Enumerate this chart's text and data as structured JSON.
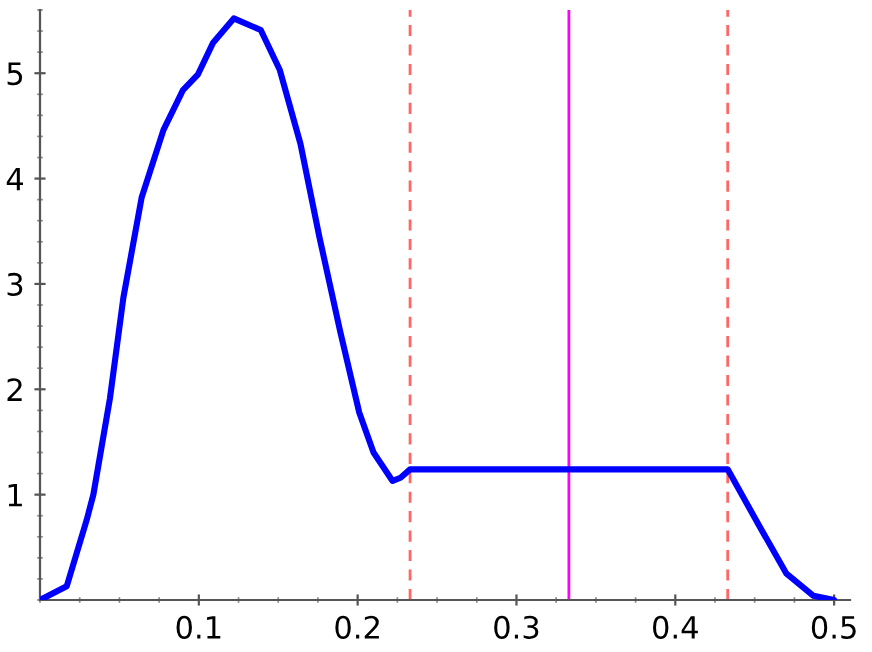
{
  "chart_data": {
    "type": "line",
    "series": [
      {
        "color": "#0000ff",
        "x": [
          0,
          0.0168,
          0.0294,
          0.0336,
          0.044,
          0.0525,
          0.064,
          0.0777,
          0.09,
          0.0995,
          0.109,
          0.122,
          0.139,
          0.151,
          0.164,
          0.176,
          0.189,
          0.201,
          0.21,
          0.222,
          0.227,
          0.233,
          0.433,
          0.453,
          0.47,
          0.487,
          0.5
        ],
        "values": [
          0,
          0.13,
          0.76,
          1.0,
          1.91,
          2.87,
          3.82,
          4.46,
          4.84,
          4.99,
          5.29,
          5.52,
          5.41,
          5.03,
          4.33,
          3.44,
          2.55,
          1.78,
          1.4,
          1.13,
          1.16,
          1.24,
          1.24,
          0.7,
          0.25,
          0.04,
          0
        ]
      }
    ],
    "xlim": [
      0,
      0.51
    ],
    "ylim": [
      0,
      5.6
    ],
    "xticks": [
      0.1,
      0.2,
      0.3,
      0.4,
      0.5
    ],
    "yticks": [
      1,
      2,
      3,
      4,
      5
    ],
    "ref_lines": [
      {
        "axis": "x",
        "value": 0.233,
        "color": "#ff6666",
        "line_style": "dashed"
      },
      {
        "axis": "x",
        "value": 0.333,
        "color": "#ff00ff",
        "line_style": "solid"
      },
      {
        "axis": "x",
        "value": 0.433,
        "color": "#ff6666",
        "line_style": "dashed"
      }
    ],
    "grid": false,
    "legend": false,
    "marker": "none",
    "line_style": "solid"
  }
}
